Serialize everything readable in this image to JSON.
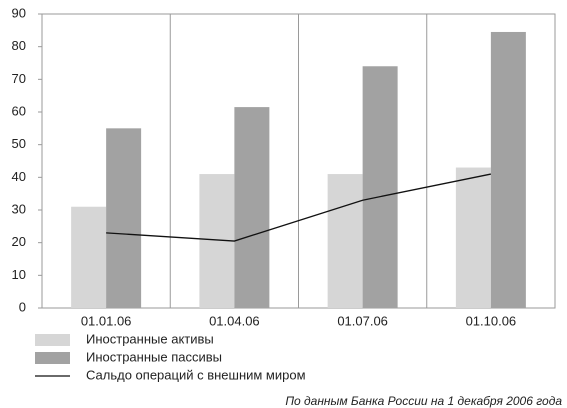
{
  "chart_data": {
    "type": "bar",
    "categories": [
      "01.01.06",
      "01.04.06",
      "01.07.06",
      "01.10.06"
    ],
    "series": [
      {
        "name": "Иностранные активы",
        "type": "bar",
        "color": "#d6d6d6",
        "values": [
          31,
          41,
          41,
          43
        ]
      },
      {
        "name": "Иностранные пассивы",
        "type": "bar",
        "color": "#a2a2a2",
        "values": [
          55,
          61.5,
          74,
          84.5
        ]
      },
      {
        "name": "Сальдо операций с внешним миром",
        "type": "line",
        "color": "#111111",
        "values": [
          23,
          20.5,
          33,
          41
        ]
      }
    ],
    "ylim": [
      0,
      90
    ],
    "yticks": [
      0,
      10,
      20,
      30,
      40,
      50,
      60,
      70,
      80,
      90
    ],
    "legend": "bottom-left",
    "note": "По данным Банка России на 1 декабря 2006 года"
  }
}
